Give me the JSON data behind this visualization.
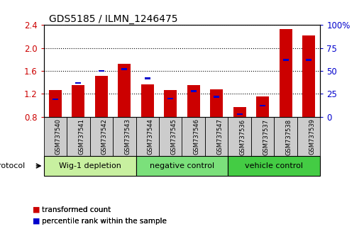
{
  "title": "GDS5185 / ILMN_1246475",
  "samples": [
    "GSM737540",
    "GSM737541",
    "GSM737542",
    "GSM737543",
    "GSM737544",
    "GSM737545",
    "GSM737546",
    "GSM737547",
    "GSM737536",
    "GSM737537",
    "GSM737538",
    "GSM737539"
  ],
  "red_values": [
    1.27,
    1.35,
    1.52,
    1.73,
    1.37,
    1.27,
    1.35,
    1.28,
    0.97,
    1.15,
    2.33,
    2.22
  ],
  "blue_values": [
    0.19,
    0.37,
    0.5,
    0.52,
    0.42,
    0.2,
    0.28,
    0.22,
    0.03,
    0.12,
    0.62,
    0.62
  ],
  "ymin": 0.8,
  "ymax": 2.4,
  "yticks_left": [
    0.8,
    1.2,
    1.6,
    2.0,
    2.4
  ],
  "yticks_right": [
    0,
    25,
    50,
    75,
    100
  ],
  "groups": [
    {
      "label": "Wig-1 depletion",
      "start": 0,
      "end": 4,
      "color": "#c8f0a0"
    },
    {
      "label": "negative control",
      "start": 4,
      "end": 8,
      "color": "#7be07b"
    },
    {
      "label": "vehicle control",
      "start": 8,
      "end": 12,
      "color": "#44cc44"
    }
  ],
  "sample_box_color": "#cccccc",
  "bar_color": "#cc0000",
  "blue_color": "#0000cc",
  "bar_width": 0.55,
  "background_color": "#ffffff",
  "tick_label_color_left": "#cc0000",
  "tick_label_color_right": "#0000cc",
  "legend_red": "transformed count",
  "legend_blue": "percentile rank within the sample",
  "protocol_label": "protocol"
}
